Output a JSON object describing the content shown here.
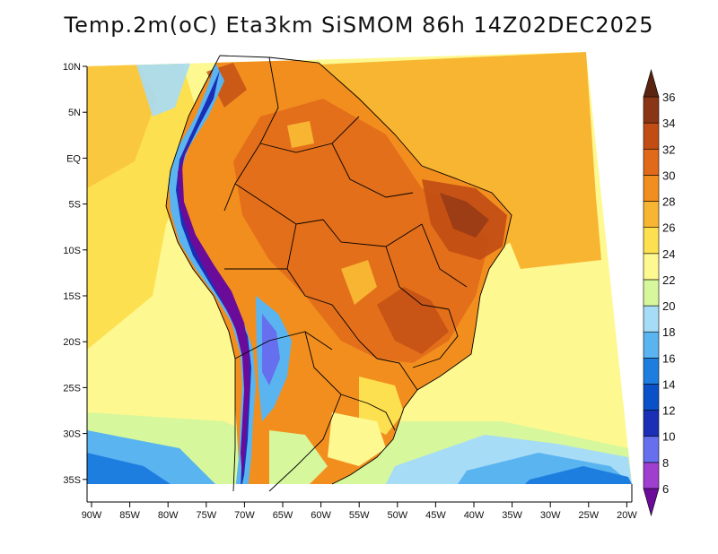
{
  "title": "Temp.2m(oC) Eta3km SiSMOM 86h 14Z02DEC2025",
  "axes": {
    "lat_labels": [
      "10N",
      "5N",
      "EQ",
      "5S",
      "10S",
      "15S",
      "20S",
      "25S",
      "30S",
      "35S"
    ],
    "lon_labels": [
      "90W",
      "85W",
      "80W",
      "75W",
      "70W",
      "65W",
      "60W",
      "55W",
      "50W",
      "45W",
      "40W",
      "35W",
      "30W",
      "25W",
      "20W"
    ]
  },
  "colorbar": {
    "levels": [
      "6",
      "8",
      "10",
      "12",
      "14",
      "16",
      "18",
      "20",
      "22",
      "24",
      "26",
      "28",
      "30",
      "32",
      "34",
      "36"
    ],
    "colors": [
      "#6a0b9a",
      "#9e3fd0",
      "#6670ee",
      "#1a2fb5",
      "#0a50c8",
      "#1e7ee0",
      "#5ab4f0",
      "#a6dcf6",
      "#d6f79c",
      "#fdf890",
      "#fde050",
      "#f7b532",
      "#f28e1e",
      "#e06a1a",
      "#c14d14",
      "#8a3515",
      "#5a2510"
    ],
    "under_color": "#6a0b9a",
    "over_color": "#5a2510"
  }
}
